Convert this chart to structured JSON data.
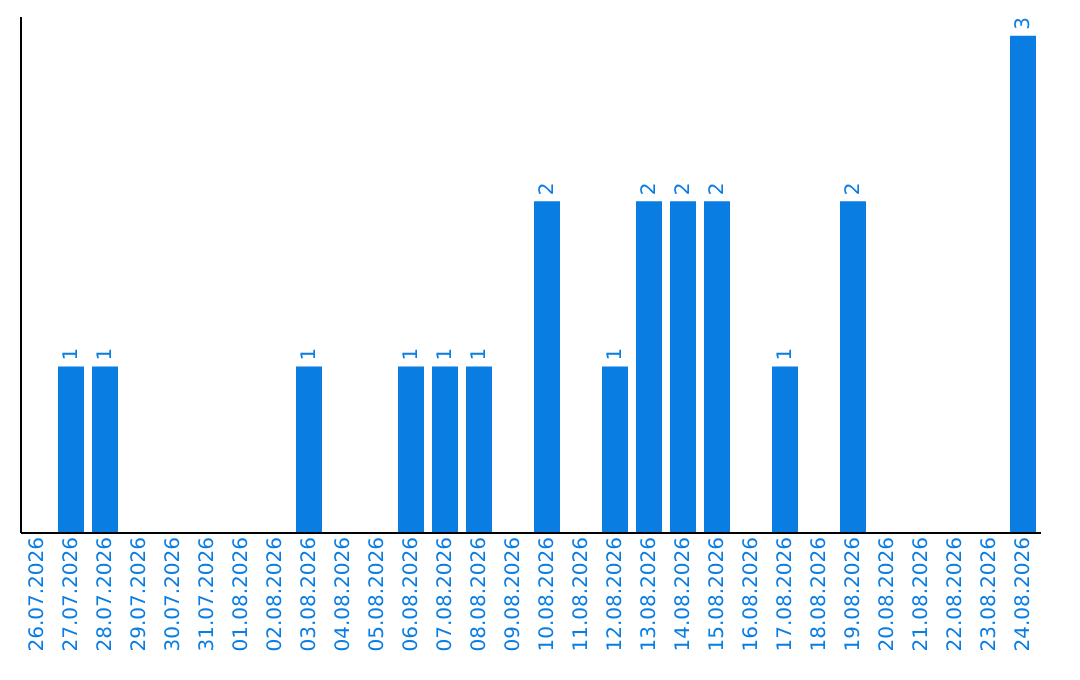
{
  "chart_data": {
    "type": "bar",
    "categories": [
      "26.07.2026",
      "27.07.2026",
      "28.07.2026",
      "29.07.2026",
      "30.07.2026",
      "31.07.2026",
      "01.08.2026",
      "02.08.2026",
      "03.08.2026",
      "04.08.2026",
      "05.08.2026",
      "06.08.2026",
      "07.08.2026",
      "08.08.2026",
      "09.08.2026",
      "10.08.2026",
      "11.08.2026",
      "12.08.2026",
      "13.08.2026",
      "14.08.2026",
      "15.08.2026",
      "16.08.2026",
      "17.08.2026",
      "18.08.2026",
      "19.08.2026",
      "20.08.2026",
      "21.08.2026",
      "22.08.2026",
      "23.08.2026",
      "24.08.2026"
    ],
    "values": [
      0,
      1,
      1,
      0,
      0,
      0,
      0,
      0,
      1,
      0,
      0,
      1,
      1,
      1,
      0,
      2,
      0,
      1,
      2,
      2,
      2,
      0,
      1,
      0,
      2,
      0,
      0,
      0,
      0,
      3
    ],
    "value_labels": [
      null,
      "1",
      "1",
      null,
      null,
      null,
      null,
      null,
      "1",
      null,
      null,
      "1",
      "1",
      "1",
      null,
      "2",
      null,
      "1",
      "2",
      "2",
      "2",
      null,
      "1",
      null,
      "2",
      null,
      null,
      null,
      null,
      "3"
    ],
    "color": "#0a7de3",
    "ylim": [
      0,
      3.12
    ],
    "tick_labels": "x",
    "grid": false
  }
}
